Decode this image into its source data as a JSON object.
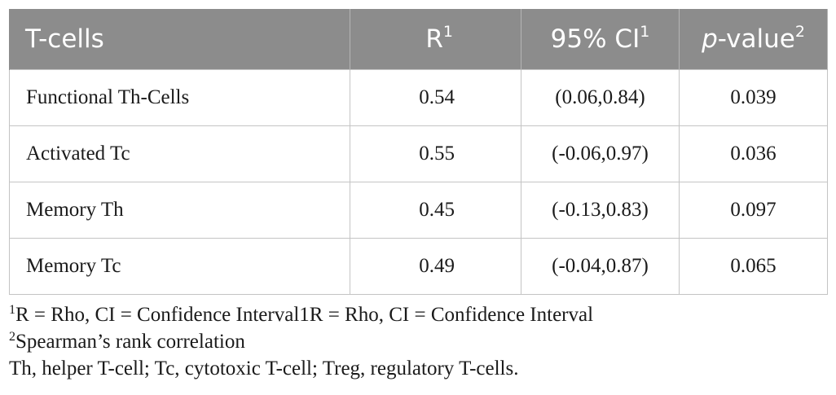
{
  "table": {
    "headers": [
      {
        "text": "T-cells",
        "sup": ""
      },
      {
        "text": "R",
        "sup": "1"
      },
      {
        "text": "95% CI",
        "sup": "1"
      },
      {
        "text_italic": "p",
        "text": "-value",
        "sup": "2"
      }
    ],
    "rows": [
      {
        "label": "Functional Th-Cells",
        "r": "0.54",
        "ci": "(0.06,0.84)",
        "p": "0.039"
      },
      {
        "label": "Activated Tc",
        "r": "0.55",
        "ci": "(-0.06,0.97)",
        "p": "0.036"
      },
      {
        "label": "Memory Th",
        "r": "0.45",
        "ci": "(-0.13,0.83)",
        "p": "0.097"
      },
      {
        "label": "Memory Tc",
        "r": "0.49",
        "ci": "(-0.04,0.87)",
        "p": "0.065"
      }
    ]
  },
  "footnotes": [
    {
      "sup": "1",
      "text": "R = Rho, CI = Confidence Interval1R = Rho, CI = Confidence Interval"
    },
    {
      "sup": "2",
      "text": "Spearman’s rank correlation"
    },
    {
      "sup": "",
      "text": "Th, helper T-cell; Tc, cytotoxic T-cell; Treg, regulatory T-cells."
    }
  ]
}
